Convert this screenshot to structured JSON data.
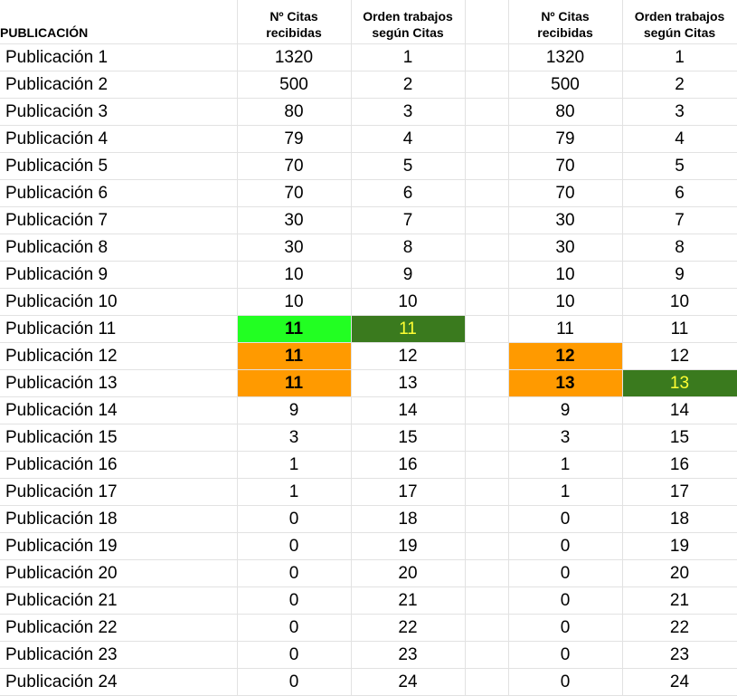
{
  "headers": {
    "name": "PUBLICACIÓN",
    "citas_1": "Nº Citas",
    "citas_2": "recibidas",
    "orden_1": "Orden trabajos",
    "orden_2": "según Citas"
  },
  "colors": {
    "bright_green": "#22ff22",
    "dark_green": "#3a7a1e",
    "orange": "#ff9a00",
    "yellow_text": "#ffff33",
    "grid": "#e2e2e2"
  },
  "rows": [
    {
      "name": "Publicación 1",
      "c1": "1320",
      "o1": "1",
      "c2": "1320",
      "o2": "1"
    },
    {
      "name": "Publicación 2",
      "c1": "500",
      "o1": "2",
      "c2": "500",
      "o2": "2"
    },
    {
      "name": "Publicación 3",
      "c1": "80",
      "o1": "3",
      "c2": "80",
      "o2": "3"
    },
    {
      "name": "Publicación 4",
      "c1": "79",
      "o1": "4",
      "c2": "79",
      "o2": "4"
    },
    {
      "name": "Publicación 5",
      "c1": "70",
      "o1": "5",
      "c2": "70",
      "o2": "5"
    },
    {
      "name": "Publicación 6",
      "c1": "70",
      "o1": "6",
      "c2": "70",
      "o2": "6"
    },
    {
      "name": "Publicación 7",
      "c1": "30",
      "o1": "7",
      "c2": "30",
      "o2": "7"
    },
    {
      "name": "Publicación 8",
      "c1": "30",
      "o1": "8",
      "c2": "30",
      "o2": "8"
    },
    {
      "name": "Publicación 9",
      "c1": "10",
      "o1": "9",
      "c2": "10",
      "o2": "9"
    },
    {
      "name": "Publicación 10",
      "c1": "10",
      "o1": "10",
      "c2": "10",
      "o2": "10"
    },
    {
      "name": "Publicación 11",
      "c1": "11",
      "o1": "11",
      "c2": "11",
      "o2": "11",
      "style": {
        "c1": {
          "bg": "bright_green",
          "bold": true
        },
        "o1": {
          "bg": "dark_green",
          "fg": "yellow_text"
        }
      }
    },
    {
      "name": "Publicación 12",
      "c1": "11",
      "o1": "12",
      "c2": "12",
      "o2": "12",
      "style": {
        "c1": {
          "bg": "orange",
          "bold": true
        },
        "c2": {
          "bg": "orange",
          "bold": true
        }
      }
    },
    {
      "name": "Publicación 13",
      "c1": "11",
      "o1": "13",
      "c2": "13",
      "o2": "13",
      "style": {
        "c1": {
          "bg": "orange",
          "bold": true
        },
        "c2": {
          "bg": "orange",
          "bold": true
        },
        "o2": {
          "bg": "dark_green",
          "fg": "yellow_text"
        }
      }
    },
    {
      "name": "Publicación 14",
      "c1": "9",
      "o1": "14",
      "c2": "9",
      "o2": "14"
    },
    {
      "name": "Publicación 15",
      "c1": "3",
      "o1": "15",
      "c2": "3",
      "o2": "15"
    },
    {
      "name": "Publicación 16",
      "c1": "1",
      "o1": "16",
      "c2": "1",
      "o2": "16"
    },
    {
      "name": "Publicación 17",
      "c1": "1",
      "o1": "17",
      "c2": "1",
      "o2": "17"
    },
    {
      "name": "Publicación 18",
      "c1": "0",
      "o1": "18",
      "c2": "0",
      "o2": "18"
    },
    {
      "name": "Publicación 19",
      "c1": "0",
      "o1": "19",
      "c2": "0",
      "o2": "19"
    },
    {
      "name": "Publicación 20",
      "c1": "0",
      "o1": "20",
      "c2": "0",
      "o2": "20"
    },
    {
      "name": "Publicación 21",
      "c1": "0",
      "o1": "21",
      "c2": "0",
      "o2": "21"
    },
    {
      "name": "Publicación 22",
      "c1": "0",
      "o1": "22",
      "c2": "0",
      "o2": "22"
    },
    {
      "name": "Publicación 23",
      "c1": "0",
      "o1": "23",
      "c2": "0",
      "o2": "23"
    },
    {
      "name": "Publicación 24",
      "c1": "0",
      "o1": "24",
      "c2": "0",
      "o2": "24"
    }
  ]
}
